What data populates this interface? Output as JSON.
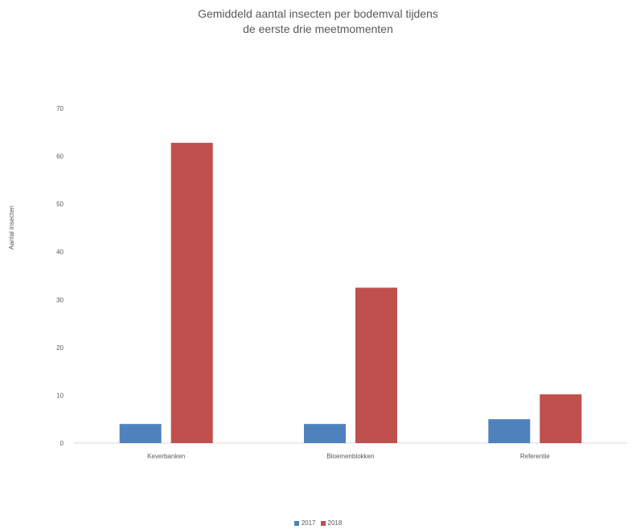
{
  "chart_data": {
    "type": "bar",
    "title": [
      "Gemiddeld aantal insecten per bodemval tijdens",
      "de eerste drie meetmomenten"
    ],
    "xlabel": "",
    "ylabel": "Aantal insecten",
    "categories": [
      "Keverbanken",
      "Bloemenblokken",
      "Referentie"
    ],
    "series": [
      {
        "name": "2017",
        "color": "#4f81bd",
        "values": [
          4,
          4,
          5
        ]
      },
      {
        "name": "2018",
        "color": "#c0504d",
        "values": [
          62.8,
          32.5,
          10.2
        ]
      }
    ],
    "ylim": [
      0,
      70
    ],
    "yticks": [
      0,
      10,
      20,
      30,
      40,
      50,
      60,
      70
    ],
    "grid": false,
    "legend_position": "bottom"
  }
}
